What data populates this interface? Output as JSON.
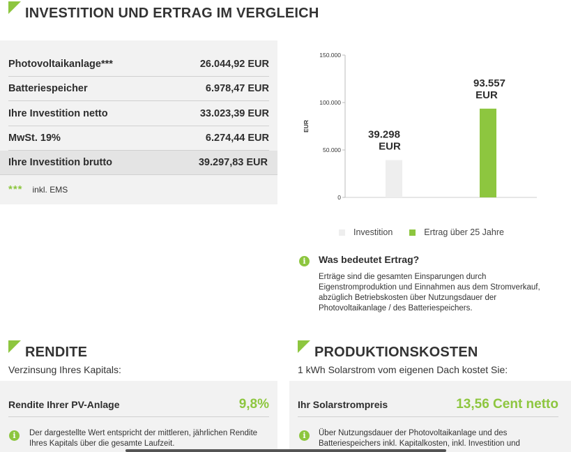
{
  "header": {
    "title": "INVESTITION UND ERTRAG IM VERGLEICH"
  },
  "costs": {
    "rows": [
      {
        "label": "Photovoltaikanlage***",
        "value": "26.044,92 EUR"
      },
      {
        "label": "Batteriespeicher",
        "value": "6.978,47 EUR"
      },
      {
        "label": "Ihre Investition netto",
        "value": "33.023,39 EUR"
      },
      {
        "label": "MwSt. 19%",
        "value": "6.274,44 EUR"
      }
    ],
    "total": {
      "label": "Ihre Investition brutto",
      "value": "39.297,83 EUR"
    },
    "footnote": {
      "stars": "***",
      "text": "inkl. EMS"
    }
  },
  "chart_data": {
    "type": "bar",
    "categories": [
      "Investition",
      "Ertrag über 25 Jahre"
    ],
    "values": [
      39298,
      93557
    ],
    "data_labels": [
      [
        "39.298",
        "EUR"
      ],
      [
        "93.557",
        "EUR"
      ]
    ],
    "ylabel": "EUR",
    "ylim": [
      0,
      150000
    ],
    "yticks": [
      0,
      50000,
      100000,
      150000
    ],
    "ytick_labels": [
      "0",
      "50.000",
      "100.000",
      "150.000"
    ],
    "colors": [
      "#eeeeee",
      "#8dc63f"
    ],
    "legend": [
      {
        "label": "Investition",
        "color": "#eeeeee"
      },
      {
        "label": "Ertrag über 25 Jahre",
        "color": "#8dc63f"
      }
    ],
    "legend_position": "bottom",
    "grid": false
  },
  "info_ertrag": {
    "title": "Was bedeutet Ertrag?",
    "text": "Erträge sind die gesamten Einsparungen durch Eigenstromproduktion und Einnahmen aus dem Stromverkauf, abzüglich Betriebskosten über Nutzungsdauer der Photovoltaikanlage / des Batteriespeichers."
  },
  "rendite": {
    "title": "RENDITE",
    "subtitle": "Verzinsung Ihres Kapitals:",
    "label": "Rendite Ihrer PV-Anlage",
    "value": "9,8%",
    "note": "Der dargestellte Wert entspricht der mittleren, jährlichen Rendite Ihres Kapitals über die gesamte Laufzeit."
  },
  "produktionskosten": {
    "title": "PRODUKTIONSKOSTEN",
    "subtitle": "1 kWh Solarstrom vom eigenen Dach kostet Sie:",
    "label": "Ihr Solarstrompreis",
    "value": "13,56 Cent netto",
    "note": "Über Nutzungsdauer der Photovoltaikanlage und des Batteriespeichers inkl. Kapitalkosten, inkl. Investition und"
  },
  "colors": {
    "accent": "#8dc63f",
    "panel": "#f2f2f2",
    "text": "#333333"
  }
}
